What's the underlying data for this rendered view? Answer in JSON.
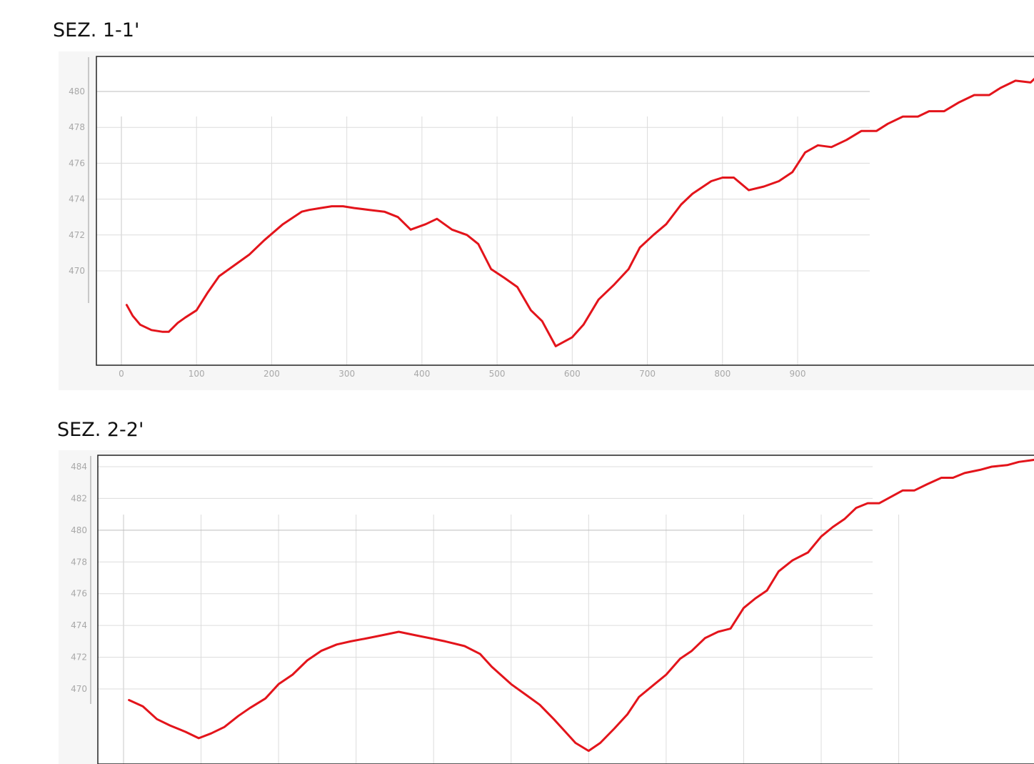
{
  "colors": {
    "profile_line": "#e3141b",
    "grid": "#dcdcdc",
    "reference_line": "#bdbdbd",
    "tick_text": "#a8a8a8",
    "frame": "#222222",
    "panel_bg": "#f6f6f6"
  },
  "sections": [
    {
      "title": "SEZ. 1-1'",
      "chart_data": {
        "type": "line",
        "title": "SEZ. 1-1'",
        "xlabel": "",
        "ylabel": "",
        "xlim": [
          -15,
          1220
        ],
        "ylim": [
          464.8,
          481.9
        ],
        "x_ticks": [
          0,
          100,
          200,
          300,
          400,
          500,
          600,
          700,
          800,
          900
        ],
        "y_ticks": [
          470,
          472,
          474,
          476,
          478,
          480
        ],
        "grid": true,
        "legend": "none",
        "series": [
          {
            "x": [
              7,
              15,
              25,
              40,
              55,
              63,
              75,
              85,
              100,
              115,
              130,
              150,
              170,
              190,
              215,
              240,
              250,
              265,
              280,
              295,
              310,
              330,
              350,
              368,
              385,
              405,
              420,
              440,
              460,
              475,
              492,
              510,
              527,
              545,
              560,
              578,
              600,
              615,
              635,
              655,
              675,
              690,
              708,
              725,
              745,
              760,
              785,
              800,
              815,
              835,
              855,
              875,
              893,
              910,
              927,
              945,
              965,
              985,
              1005,
              1020,
              1040,
              1060,
              1075,
              1095,
              1115,
              1135,
              1155,
              1170,
              1190,
              1210,
              1220
            ],
            "y": [
              468.1,
              467.5,
              467.0,
              466.7,
              466.6,
              466.6,
              467.1,
              467.4,
              467.8,
              468.8,
              469.7,
              470.3,
              470.9,
              471.7,
              472.6,
              473.3,
              473.4,
              473.5,
              473.6,
              473.6,
              473.5,
              473.4,
              473.3,
              473.0,
              472.3,
              472.6,
              472.9,
              472.3,
              472.0,
              471.5,
              470.1,
              469.6,
              469.1,
              467.8,
              467.2,
              465.8,
              466.3,
              467.0,
              468.4,
              469.2,
              470.1,
              471.3,
              472.0,
              472.6,
              473.7,
              474.3,
              475.0,
              475.2,
              475.2,
              474.5,
              474.7,
              475.0,
              475.5,
              476.6,
              477.0,
              476.9,
              477.3,
              477.8,
              477.8,
              478.2,
              478.6,
              478.6,
              478.9,
              478.9,
              479.4,
              479.8,
              479.8,
              480.2,
              480.6,
              480.5,
              480.9
            ]
          }
        ]
      }
    },
    {
      "title": "SEZ. 2-2'",
      "chart_data": {
        "type": "line",
        "title": "SEZ. 2-2'",
        "xlabel": "",
        "ylabel": "",
        "xlim": [
          -15,
          1220
        ],
        "ylim": [
          465.3,
          484.6
        ],
        "x_ticks": [
          0,
          100,
          200,
          300,
          400,
          500,
          600,
          700,
          800,
          900,
          1000
        ],
        "x_tick_labels_visible": false,
        "y_ticks": [
          470,
          472,
          474,
          476,
          478,
          480,
          482,
          484
        ],
        "y_tick_labels": [
          "470",
          "472",
          "474",
          "476",
          "478",
          "480",
          "482",
          "484"
        ],
        "grid": true,
        "legend": "none",
        "series": [
          {
            "x": [
              7,
              25,
              43,
              60,
              80,
              97,
              113,
              130,
              148,
              163,
              183,
              200,
              218,
              237,
              255,
              275,
              293,
              315,
              335,
              355,
              375,
              395,
              415,
              440,
              460,
              475,
              500,
              520,
              537,
              555,
              570,
              583,
              600,
              615,
              633,
              650,
              665,
              685,
              700,
              718,
              733,
              750,
              767,
              783,
              800,
              815,
              830,
              845,
              863,
              883,
              900,
              915,
              930,
              945,
              960,
              975,
              990,
              1005,
              1020,
              1037,
              1055,
              1070,
              1085,
              1105,
              1120,
              1140,
              1155,
              1170,
              1185,
              1200,
              1220
            ],
            "y": [
              469.3,
              468.9,
              468.1,
              467.7,
              467.3,
              466.9,
              467.2,
              467.6,
              468.3,
              468.8,
              469.4,
              470.3,
              470.9,
              471.8,
              472.4,
              472.8,
              473.0,
              473.2,
              473.4,
              473.6,
              473.4,
              473.2,
              473.0,
              472.7,
              472.2,
              471.4,
              470.3,
              469.6,
              469.0,
              468.1,
              467.3,
              466.6,
              466.1,
              466.6,
              467.5,
              468.4,
              469.5,
              470.3,
              470.9,
              471.9,
              472.4,
              473.2,
              473.6,
              473.8,
              475.1,
              475.7,
              476.2,
              477.4,
              478.1,
              478.6,
              479.6,
              480.2,
              480.7,
              481.4,
              481.7,
              481.7,
              482.1,
              482.5,
              482.5,
              482.9,
              483.3,
              483.3,
              483.6,
              483.8,
              484.0,
              484.1,
              484.3,
              484.4,
              484.5,
              484.6,
              484.7
            ]
          }
        ]
      }
    }
  ]
}
